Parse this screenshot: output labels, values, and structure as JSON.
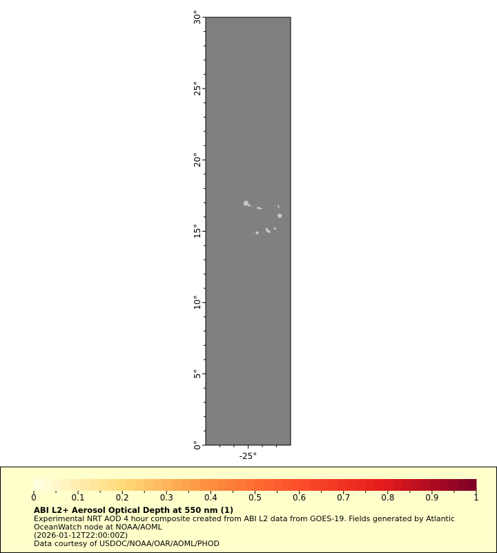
{
  "map": {
    "lat_range": [
      0,
      30
    ],
    "lon_range": [
      -28,
      -22
    ],
    "lat_ticks": [
      "0°",
      "5°",
      "10°",
      "15°",
      "20°",
      "25°",
      "30°"
    ],
    "lon_ticks": [
      "-25°"
    ],
    "data_fill_color": "#808080",
    "land_color": "#c8c8c8"
  },
  "legend": {
    "colorbar": {
      "min": 0,
      "max": 1,
      "ticks": [
        "0",
        "0.1",
        "0.2",
        "0.3",
        "0.4",
        "0.5",
        "0.6",
        "0.7",
        "0.8",
        "0.9",
        "1"
      ],
      "colors": [
        "#ffffe0",
        "#fed976",
        "#fd8d3c",
        "#fc4e2a",
        "#e31a1c",
        "#800026"
      ]
    },
    "title": "ABI L2+ Aerosol Optical Depth at 550 nm (1)",
    "line1": "Experimental NRT AOD 4 hour composite created from ABI L2 data from GOES-19. Fields generated by Atlantic",
    "line2": "OceanWatch node at NOAA/AOML",
    "line3": "(2026-01-12T22:00:00Z)",
    "line4": "Data courtesy of USDOC/NOAA/OAR/AOML/PHOD"
  }
}
